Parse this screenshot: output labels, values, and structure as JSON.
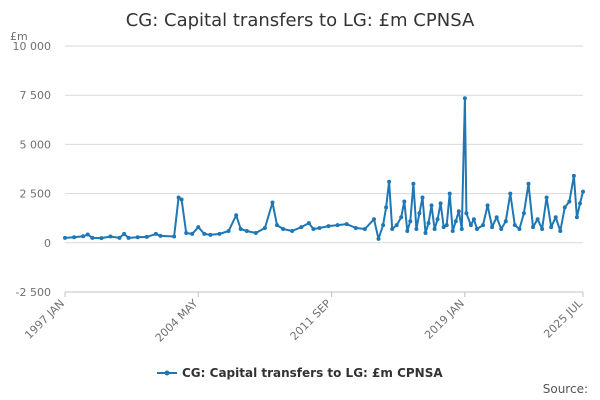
{
  "chart_data": {
    "type": "line",
    "title": "CG: Capital transfers to LG: £m CPNSA",
    "ylabel": "£m",
    "xlabel": "",
    "ylim": [
      -2500,
      10000
    ],
    "y_ticks": [
      10000,
      7500,
      5000,
      2500,
      0,
      -2500
    ],
    "y_tick_labels": [
      "10 000",
      "7 500",
      "5 000",
      "2 500",
      "0",
      "-2 500"
    ],
    "x_tick_labels": [
      "1997 JAN",
      "2004 MAY",
      "2011 SEP",
      "2019 JAN",
      "2025 JUL"
    ],
    "x_tick_dates": [
      "1997-01",
      "2004-05",
      "2011-09",
      "2019-01",
      "2025-07"
    ],
    "x_range": [
      "1997-01",
      "2025-07"
    ],
    "grid": "horizontal",
    "legend_position": "bottom",
    "series": [
      {
        "name": "CG: Capital transfers to LG: £m CPNSA",
        "color": "#1f77b4",
        "points": [
          [
            "1997-01",
            250
          ],
          [
            "1997-07",
            280
          ],
          [
            "1998-01",
            330
          ],
          [
            "1998-04",
            420
          ],
          [
            "1998-07",
            250
          ],
          [
            "1999-01",
            240
          ],
          [
            "1999-07",
            320
          ],
          [
            "2000-01",
            250
          ],
          [
            "2000-04",
            450
          ],
          [
            "2000-07",
            250
          ],
          [
            "2001-01",
            280
          ],
          [
            "2001-07",
            300
          ],
          [
            "2002-01",
            450
          ],
          [
            "2002-04",
            350
          ],
          [
            "2003-01",
            320
          ],
          [
            "2003-04",
            2300
          ],
          [
            "2003-06",
            2200
          ],
          [
            "2003-09",
            500
          ],
          [
            "2004-01",
            450
          ],
          [
            "2004-05",
            800
          ],
          [
            "2004-09",
            450
          ],
          [
            "2005-01",
            400
          ],
          [
            "2005-07",
            450
          ],
          [
            "2006-01",
            600
          ],
          [
            "2006-06",
            1400
          ],
          [
            "2006-09",
            700
          ],
          [
            "2007-01",
            600
          ],
          [
            "2007-07",
            500
          ],
          [
            "2008-01",
            750
          ],
          [
            "2008-06",
            2050
          ],
          [
            "2008-09",
            900
          ],
          [
            "2009-01",
            700
          ],
          [
            "2009-07",
            600
          ],
          [
            "2010-01",
            800
          ],
          [
            "2010-06",
            1000
          ],
          [
            "2010-09",
            700
          ],
          [
            "2011-01",
            750
          ],
          [
            "2011-07",
            850
          ],
          [
            "2012-01",
            900
          ],
          [
            "2012-07",
            950
          ],
          [
            "2013-01",
            750
          ],
          [
            "2013-07",
            700
          ],
          [
            "2014-01",
            1200
          ],
          [
            "2014-04",
            200
          ],
          [
            "2014-07",
            900
          ],
          [
            "2014-09",
            1800
          ],
          [
            "2014-11",
            3100
          ],
          [
            "2015-01",
            700
          ],
          [
            "2015-04",
            900
          ],
          [
            "2015-07",
            1300
          ],
          [
            "2015-09",
            2100
          ],
          [
            "2015-11",
            600
          ],
          [
            "2016-01",
            1100
          ],
          [
            "2016-03",
            3000
          ],
          [
            "2016-05",
            700
          ],
          [
            "2016-07",
            1500
          ],
          [
            "2016-09",
            2300
          ],
          [
            "2016-11",
            500
          ],
          [
            "2017-01",
            1000
          ],
          [
            "2017-03",
            1900
          ],
          [
            "2017-05",
            700
          ],
          [
            "2017-07",
            1200
          ],
          [
            "2017-09",
            2000
          ],
          [
            "2017-11",
            800
          ],
          [
            "2018-01",
            900
          ],
          [
            "2018-03",
            2500
          ],
          [
            "2018-05",
            600
          ],
          [
            "2018-07",
            1100
          ],
          [
            "2018-09",
            1600
          ],
          [
            "2018-11",
            700
          ],
          [
            "2019-01",
            7350
          ],
          [
            "2019-02",
            1500
          ],
          [
            "2019-05",
            900
          ],
          [
            "2019-07",
            1200
          ],
          [
            "2019-09",
            700
          ],
          [
            "2020-01",
            900
          ],
          [
            "2020-04",
            1900
          ],
          [
            "2020-07",
            800
          ],
          [
            "2020-10",
            1300
          ],
          [
            "2021-01",
            700
          ],
          [
            "2021-04",
            1100
          ],
          [
            "2021-07",
            2500
          ],
          [
            "2021-10",
            900
          ],
          [
            "2022-01",
            700
          ],
          [
            "2022-04",
            1500
          ],
          [
            "2022-07",
            3000
          ],
          [
            "2022-10",
            800
          ],
          [
            "2023-01",
            1200
          ],
          [
            "2023-04",
            700
          ],
          [
            "2023-07",
            2300
          ],
          [
            "2023-10",
            800
          ],
          [
            "2024-01",
            1300
          ],
          [
            "2024-04",
            600
          ],
          [
            "2024-07",
            1800
          ],
          [
            "2024-10",
            2100
          ],
          [
            "2025-01",
            3400
          ],
          [
            "2025-03",
            1300
          ],
          [
            "2025-05",
            2000
          ],
          [
            "2025-07",
            2600
          ]
        ]
      }
    ],
    "source_label": "Source:"
  }
}
